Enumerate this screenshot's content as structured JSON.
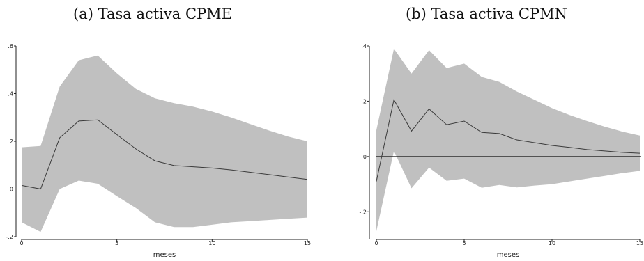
{
  "chart_data": [
    {
      "type": "line",
      "title": "(a) Tasa activa CPME",
      "xlabel": "meses",
      "ylabel": "",
      "xlim": [
        0,
        15
      ],
      "ylim": [
        -0.2,
        0.6
      ],
      "x_ticks": [
        0,
        5,
        10,
        15
      ],
      "x_tick_labels": [
        "0",
        "5",
        "10",
        "15"
      ],
      "y_ticks": [
        -0.2,
        0,
        0.2,
        0.4,
        0.6
      ],
      "y_tick_labels": [
        "-.2",
        "0",
        ".2",
        ".4",
        ".6"
      ],
      "zero_line": true,
      "grid": false,
      "x": [
        0,
        1,
        2,
        3,
        4,
        5,
        6,
        7,
        8,
        9,
        10,
        11,
        12,
        13,
        14,
        15
      ],
      "series": [
        {
          "values": [
            0.015,
            0.0,
            0.215,
            0.285,
            0.29,
            0.228,
            0.168,
            0.118,
            0.098,
            0.093,
            0.088,
            0.08,
            0.07,
            0.06,
            0.05,
            0.04
          ]
        }
      ],
      "band": {
        "upper": [
          0.175,
          0.18,
          0.43,
          0.54,
          0.56,
          0.485,
          0.42,
          0.38,
          0.36,
          0.345,
          0.325,
          0.3,
          0.272,
          0.245,
          0.22,
          0.2
        ],
        "lower": [
          -0.14,
          -0.18,
          0.0,
          0.035,
          0.022,
          -0.03,
          -0.08,
          -0.14,
          -0.16,
          -0.16,
          -0.15,
          -0.14,
          -0.135,
          -0.13,
          -0.125,
          -0.12
        ]
      },
      "colors": {
        "band": "#c0c0c0",
        "line": "#3a3a3a",
        "zero_line": "#111111"
      }
    },
    {
      "type": "line",
      "title": "(b) Tasa activa CPMN",
      "xlabel": "meses",
      "ylabel": "",
      "xlim": [
        0,
        15
      ],
      "ylim": [
        -0.3,
        0.4
      ],
      "x_ticks": [
        0,
        5,
        10,
        15
      ],
      "x_tick_labels": [
        "0",
        "5",
        "10",
        "15"
      ],
      "y_ticks": [
        -0.2,
        0,
        0.2,
        0.4
      ],
      "y_tick_labels": [
        "-.2",
        "0",
        ".2",
        ".4"
      ],
      "zero_line": true,
      "grid": false,
      "x": [
        0,
        1,
        2,
        3,
        4,
        5,
        6,
        7,
        8,
        9,
        10,
        11,
        12,
        13,
        14,
        15
      ],
      "series": [
        {
          "values": [
            -0.09,
            0.205,
            0.092,
            0.172,
            0.115,
            0.128,
            0.087,
            0.083,
            0.06,
            0.05,
            0.04,
            0.033,
            0.025,
            0.02,
            0.015,
            0.012
          ]
        }
      ],
      "band": {
        "upper": [
          0.095,
          0.39,
          0.3,
          0.385,
          0.32,
          0.336,
          0.288,
          0.27,
          0.235,
          0.205,
          0.175,
          0.15,
          0.128,
          0.108,
          0.09,
          0.076
        ],
        "lower": [
          -0.27,
          0.02,
          -0.115,
          -0.04,
          -0.088,
          -0.08,
          -0.113,
          -0.103,
          -0.112,
          -0.105,
          -0.1,
          -0.09,
          -0.08,
          -0.07,
          -0.06,
          -0.052
        ]
      },
      "colors": {
        "band": "#c0c0c0",
        "line": "#3a3a3a",
        "zero_line": "#111111"
      }
    }
  ]
}
